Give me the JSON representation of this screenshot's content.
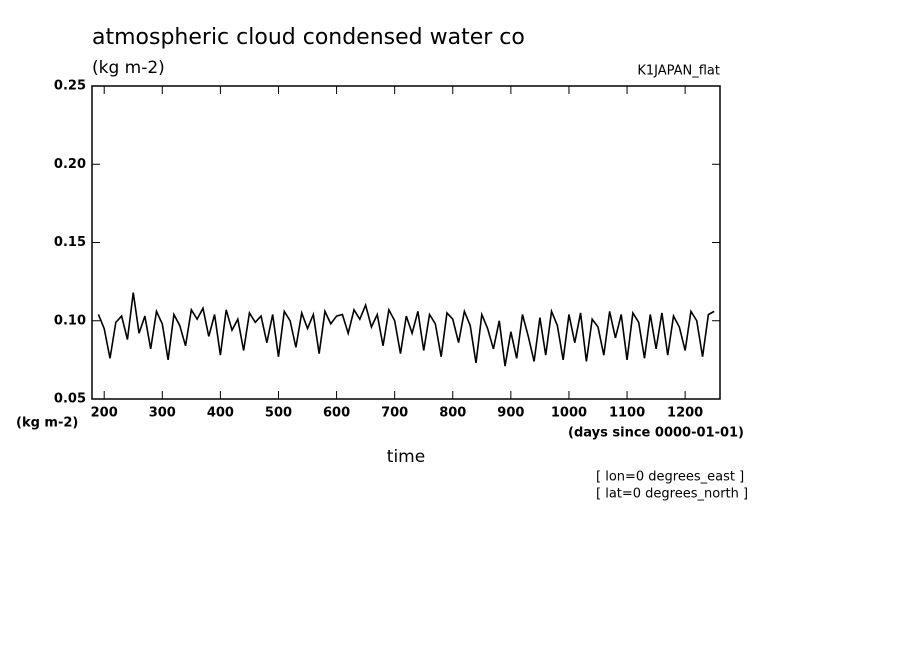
{
  "chart_data": {
    "type": "line",
    "title": "atmospheric cloud condensed water co",
    "subtitle": "(kg m-2)",
    "dataset": "K1JAPAN_flat",
    "y_unit": "(kg m-2)",
    "x_unit": "(days since 0000-01-01)",
    "xlabel": "time",
    "notes": [
      "[ lon=0 degrees_east ]",
      "[ lat=0 degrees_north ]"
    ],
    "xlim": [
      179,
      1260
    ],
    "ylim": [
      0.05,
      0.25
    ],
    "xticks": [
      200,
      300,
      400,
      500,
      600,
      700,
      800,
      900,
      1000,
      1100,
      1200
    ],
    "yticks": [
      0.05,
      {
        "value": 0.1,
        "label": "0.10"
      },
      0.15,
      {
        "value": 0.2,
        "label": "0.20"
      },
      0.25
    ],
    "x": [
      190,
      200,
      210,
      220,
      230,
      240,
      250,
      260,
      270,
      280,
      290,
      300,
      310,
      320,
      330,
      340,
      350,
      360,
      370,
      380,
      390,
      400,
      410,
      420,
      430,
      440,
      450,
      460,
      470,
      480,
      490,
      500,
      510,
      520,
      530,
      540,
      550,
      560,
      570,
      580,
      590,
      600,
      610,
      620,
      630,
      640,
      650,
      660,
      670,
      680,
      690,
      700,
      710,
      720,
      730,
      740,
      750,
      760,
      770,
      780,
      790,
      800,
      810,
      820,
      830,
      840,
      850,
      860,
      870,
      880,
      890,
      900,
      910,
      920,
      930,
      940,
      950,
      960,
      970,
      980,
      990,
      1000,
      1010,
      1020,
      1030,
      1040,
      1050,
      1060,
      1070,
      1080,
      1090,
      1100,
      1110,
      1120,
      1130,
      1140,
      1150,
      1160,
      1170,
      1180,
      1190,
      1200,
      1210,
      1220,
      1230,
      1240,
      1250
    ],
    "series": [
      {
        "color": "#000000",
        "values": [
          0.104,
          0.095,
          0.076,
          0.099,
          0.103,
          0.088,
          0.118,
          0.092,
          0.103,
          0.082,
          0.106,
          0.098,
          0.075,
          0.104,
          0.097,
          0.084,
          0.107,
          0.101,
          0.108,
          0.09,
          0.104,
          0.078,
          0.107,
          0.094,
          0.101,
          0.081,
          0.105,
          0.099,
          0.103,
          0.086,
          0.104,
          0.077,
          0.106,
          0.1,
          0.083,
          0.105,
          0.095,
          0.104,
          0.079,
          0.106,
          0.098,
          0.103,
          0.104,
          0.092,
          0.107,
          0.101,
          0.11,
          0.096,
          0.104,
          0.084,
          0.107,
          0.1,
          0.079,
          0.103,
          0.092,
          0.106,
          0.081,
          0.104,
          0.098,
          0.077,
          0.105,
          0.101,
          0.086,
          0.106,
          0.097,
          0.073,
          0.104,
          0.095,
          0.082,
          0.1,
          0.071,
          0.093,
          0.076,
          0.104,
          0.09,
          0.074,
          0.102,
          0.078,
          0.106,
          0.097,
          0.075,
          0.104,
          0.086,
          0.105,
          0.074,
          0.101,
          0.096,
          0.078,
          0.106,
          0.089,
          0.104,
          0.075,
          0.105,
          0.099,
          0.076,
          0.104,
          0.082,
          0.105,
          0.078,
          0.103,
          0.096,
          0.081,
          0.106,
          0.1,
          0.077,
          0.104,
          0.106
        ]
      }
    ]
  }
}
